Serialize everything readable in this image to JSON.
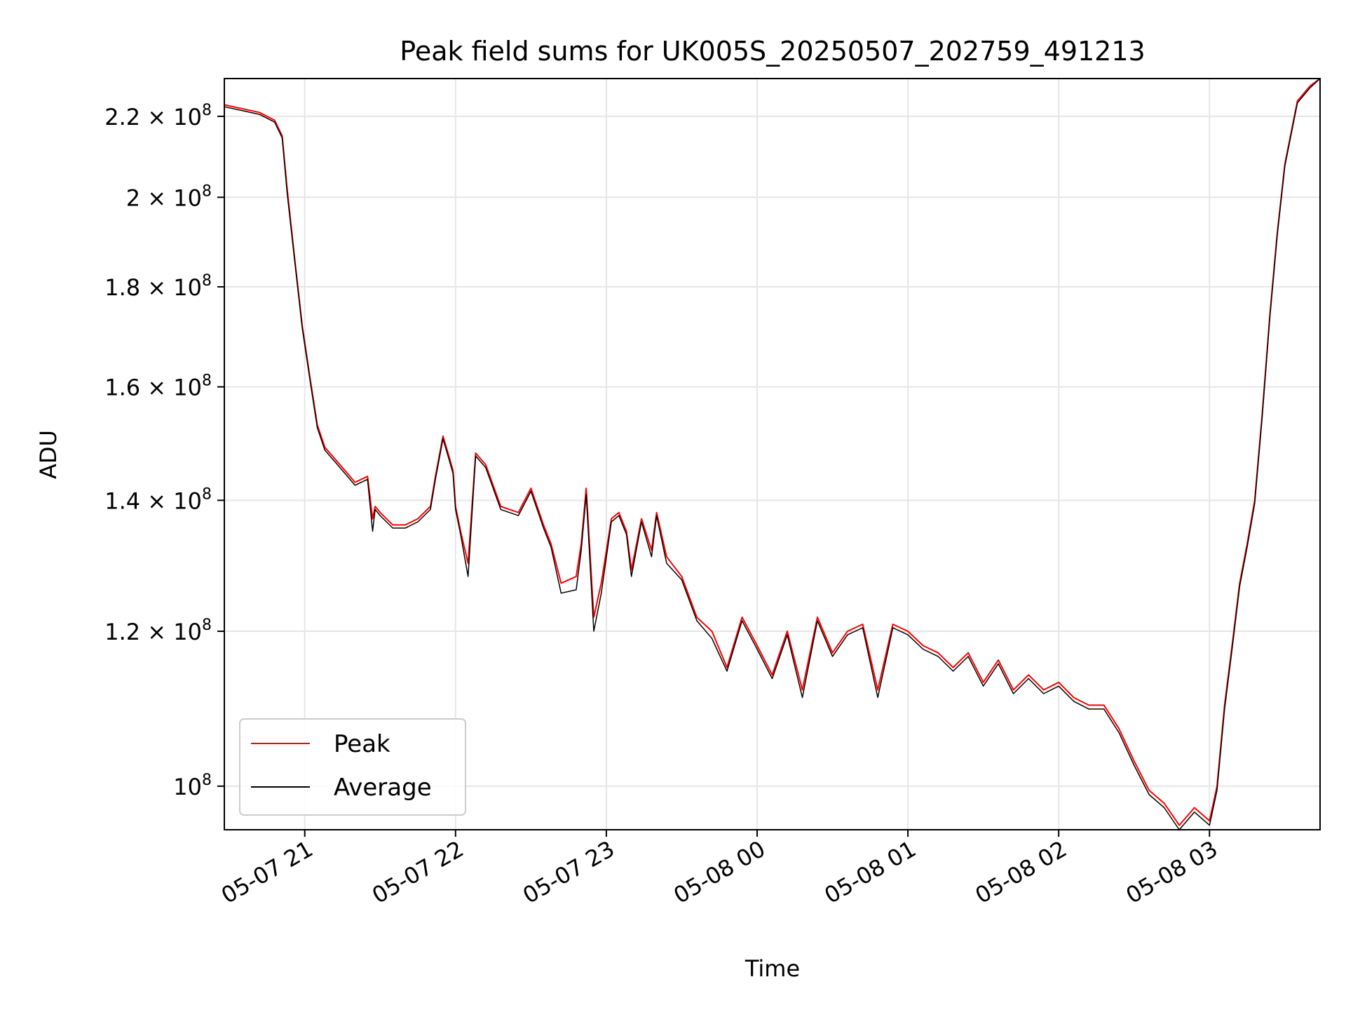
{
  "chart_data": {
    "type": "line",
    "title": "Peak field sums for UK005S_20250507_202759_491213",
    "xlabel": "Time",
    "ylabel": "ADU",
    "yscale": "log",
    "grid": true,
    "legend_position": "lower-left",
    "xlim": [
      "2025-05-07 20:28",
      "2025-05-08 03:44"
    ],
    "ylim": [
      95000000.0,
      230000000.0
    ],
    "x_ticks": [
      {
        "label": "05-07 21",
        "value": "2025-05-07 21:00"
      },
      {
        "label": "05-07 22",
        "value": "2025-05-07 22:00"
      },
      {
        "label": "05-07 23",
        "value": "2025-05-07 23:00"
      },
      {
        "label": "05-08 00",
        "value": "2025-05-08 00:00"
      },
      {
        "label": "05-08 01",
        "value": "2025-05-08 01:00"
      },
      {
        "label": "05-08 02",
        "value": "2025-05-08 02:00"
      },
      {
        "label": "05-08 03",
        "value": "2025-05-08 03:00"
      }
    ],
    "y_ticks": [
      {
        "mant": "10",
        "exp": "8",
        "value": 100000000.0
      },
      {
        "mant": "1.2 × 10",
        "exp": "8",
        "value": 120000000.0
      },
      {
        "mant": "1.4 × 10",
        "exp": "8",
        "value": 140000000.0
      },
      {
        "mant": "1.6 × 10",
        "exp": "8",
        "value": 160000000.0
      },
      {
        "mant": "1.8 × 10",
        "exp": "8",
        "value": 180000000.0
      },
      {
        "mant": "2 × 10",
        "exp": "8",
        "value": 200000000.0
      },
      {
        "mant": "2.2 × 10",
        "exp": "8",
        "value": 220000000.0
      }
    ],
    "series": [
      {
        "name": "Peak",
        "color": "#ff0000",
        "x": [
          "2025-05-07 20:28",
          "2025-05-07 20:35",
          "2025-05-07 20:42",
          "2025-05-07 20:48",
          "2025-05-07 20:51",
          "2025-05-07 20:53",
          "2025-05-07 20:56",
          "2025-05-07 20:59",
          "2025-05-07 21:02",
          "2025-05-07 21:05",
          "2025-05-07 21:08",
          "2025-05-07 21:12",
          "2025-05-07 21:16",
          "2025-05-07 21:20",
          "2025-05-07 21:25",
          "2025-05-07 21:27",
          "2025-05-07 21:28",
          "2025-05-07 21:30",
          "2025-05-07 21:35",
          "2025-05-07 21:40",
          "2025-05-07 21:45",
          "2025-05-07 21:50",
          "2025-05-07 21:52",
          "2025-05-07 21:55",
          "2025-05-07 21:57",
          "2025-05-07 21:59",
          "2025-05-07 22:00",
          "2025-05-07 22:02",
          "2025-05-07 22:05",
          "2025-05-07 22:08",
          "2025-05-07 22:12",
          "2025-05-07 22:18",
          "2025-05-07 22:25",
          "2025-05-07 22:30",
          "2025-05-07 22:35",
          "2025-05-07 22:38",
          "2025-05-07 22:42",
          "2025-05-07 22:48",
          "2025-05-07 22:50",
          "2025-05-07 22:52",
          "2025-05-07 22:55",
          "2025-05-07 22:58",
          "2025-05-07 23:02",
          "2025-05-07 23:05",
          "2025-05-07 23:08",
          "2025-05-07 23:10",
          "2025-05-07 23:14",
          "2025-05-07 23:18",
          "2025-05-07 23:20",
          "2025-05-07 23:24",
          "2025-05-07 23:30",
          "2025-05-07 23:36",
          "2025-05-07 23:42",
          "2025-05-07 23:48",
          "2025-05-07 23:54",
          "2025-05-08 00:00",
          "2025-05-08 00:06",
          "2025-05-08 00:12",
          "2025-05-08 00:18",
          "2025-05-08 00:24",
          "2025-05-08 00:30",
          "2025-05-08 00:36",
          "2025-05-08 00:42",
          "2025-05-08 00:48",
          "2025-05-08 00:54",
          "2025-05-08 01:00",
          "2025-05-08 01:06",
          "2025-05-08 01:12",
          "2025-05-08 01:18",
          "2025-05-08 01:24",
          "2025-05-08 01:30",
          "2025-05-08 01:36",
          "2025-05-08 01:42",
          "2025-05-08 01:48",
          "2025-05-08 01:54",
          "2025-05-08 02:00",
          "2025-05-08 02:06",
          "2025-05-08 02:12",
          "2025-05-08 02:18",
          "2025-05-08 02:24",
          "2025-05-08 02:30",
          "2025-05-08 02:36",
          "2025-05-08 02:42",
          "2025-05-08 02:48",
          "2025-05-08 02:54",
          "2025-05-08 03:00",
          "2025-05-08 03:03",
          "2025-05-08 03:06",
          "2025-05-08 03:09",
          "2025-05-08 03:12",
          "2025-05-08 03:15",
          "2025-05-08 03:18",
          "2025-05-08 03:21",
          "2025-05-08 03:24",
          "2025-05-08 03:27",
          "2025-05-08 03:30",
          "2025-05-08 03:35",
          "2025-05-08 03:40",
          "2025-05-08 03:44"
        ],
        "values": [
          223000000.0,
          222000000.0,
          221000000.0,
          219000000.0,
          215000000.0,
          202000000.0,
          186000000.0,
          172000000.0,
          162000000.0,
          153000000.0,
          149000000.0,
          147000000.0,
          145000000.0,
          143000000.0,
          144000000.0,
          137000000.0,
          139000000.0,
          138000000.0,
          136000000.0,
          136000000.0,
          137000000.0,
          139000000.0,
          144000000.0,
          151000000.0,
          148000000.0,
          145000000.0,
          139000000.0,
          135000000.0,
          130000000.0,
          148000000.0,
          146000000.0,
          139000000.0,
          138000000.0,
          142000000.0,
          136000000.0,
          133000000.0,
          127000000.0,
          128000000.0,
          133000000.0,
          142000000.0,
          122000000.0,
          127000000.0,
          137000000.0,
          138000000.0,
          135000000.0,
          129000000.0,
          137000000.0,
          132000000.0,
          138000000.0,
          131000000.0,
          128000000.0,
          122000000.0,
          120000000.0,
          115000000.0,
          122000000.0,
          118000000.0,
          114000000.0,
          120000000.0,
          112000000.0,
          122000000.0,
          117000000.0,
          120000000.0,
          121000000.0,
          112000000.0,
          121000000.0,
          120000000.0,
          118000000.0,
          117000000.0,
          115000000.0,
          117000000.0,
          113000000.0,
          116000000.0,
          112000000.0,
          114000000.0,
          112000000.0,
          113000000.0,
          111000000.0,
          110000000.0,
          110000000.0,
          107000000.0,
          103000000.0,
          99500000.0,
          98000000.0,
          95500000.0,
          97500000.0,
          96000000.0,
          100000000.0,
          110000000.0,
          118000000.0,
          127000000.0,
          133000000.0,
          140000000.0,
          155000000.0,
          174000000.0,
          192000000.0,
          208000000.0,
          224000000.0,
          228000000.0,
          230000000.0
        ]
      },
      {
        "name": "Average",
        "color": "#000000",
        "x": [
          "2025-05-07 20:28",
          "2025-05-07 20:35",
          "2025-05-07 20:42",
          "2025-05-07 20:48",
          "2025-05-07 20:51",
          "2025-05-07 20:53",
          "2025-05-07 20:56",
          "2025-05-07 20:59",
          "2025-05-07 21:02",
          "2025-05-07 21:05",
          "2025-05-07 21:08",
          "2025-05-07 21:12",
          "2025-05-07 21:16",
          "2025-05-07 21:20",
          "2025-05-07 21:25",
          "2025-05-07 21:27",
          "2025-05-07 21:28",
          "2025-05-07 21:30",
          "2025-05-07 21:35",
          "2025-05-07 21:40",
          "2025-05-07 21:45",
          "2025-05-07 21:50",
          "2025-05-07 21:52",
          "2025-05-07 21:55",
          "2025-05-07 21:57",
          "2025-05-07 21:59",
          "2025-05-07 22:00",
          "2025-05-07 22:02",
          "2025-05-07 22:05",
          "2025-05-07 22:08",
          "2025-05-07 22:12",
          "2025-05-07 22:18",
          "2025-05-07 22:25",
          "2025-05-07 22:30",
          "2025-05-07 22:35",
          "2025-05-07 22:38",
          "2025-05-07 22:42",
          "2025-05-07 22:48",
          "2025-05-07 22:50",
          "2025-05-07 22:52",
          "2025-05-07 22:55",
          "2025-05-07 22:58",
          "2025-05-07 23:02",
          "2025-05-07 23:05",
          "2025-05-07 23:08",
          "2025-05-07 23:10",
          "2025-05-07 23:14",
          "2025-05-07 23:18",
          "2025-05-07 23:20",
          "2025-05-07 23:24",
          "2025-05-07 23:30",
          "2025-05-07 23:36",
          "2025-05-07 23:42",
          "2025-05-07 23:48",
          "2025-05-07 23:54",
          "2025-05-08 00:00",
          "2025-05-08 00:06",
          "2025-05-08 00:12",
          "2025-05-08 00:18",
          "2025-05-08 00:24",
          "2025-05-08 00:30",
          "2025-05-08 00:36",
          "2025-05-08 00:42",
          "2025-05-08 00:48",
          "2025-05-08 00:54",
          "2025-05-08 01:00",
          "2025-05-08 01:06",
          "2025-05-08 01:12",
          "2025-05-08 01:18",
          "2025-05-08 01:24",
          "2025-05-08 01:30",
          "2025-05-08 01:36",
          "2025-05-08 01:42",
          "2025-05-08 01:48",
          "2025-05-08 01:54",
          "2025-05-08 02:00",
          "2025-05-08 02:06",
          "2025-05-08 02:12",
          "2025-05-08 02:18",
          "2025-05-08 02:24",
          "2025-05-08 02:30",
          "2025-05-08 02:36",
          "2025-05-08 02:42",
          "2025-05-08 02:48",
          "2025-05-08 02:54",
          "2025-05-08 03:00",
          "2025-05-08 03:03",
          "2025-05-08 03:06",
          "2025-05-08 03:09",
          "2025-05-08 03:12",
          "2025-05-08 03:15",
          "2025-05-08 03:18",
          "2025-05-08 03:21",
          "2025-05-08 03:24",
          "2025-05-08 03:27",
          "2025-05-08 03:30",
          "2025-05-08 03:35",
          "2025-05-08 03:40",
          "2025-05-08 03:44"
        ],
        "values": [
          222500000.0,
          221500000.0,
          220500000.0,
          218500000.0,
          214500000.0,
          201000000.0,
          185500000.0,
          171500000.0,
          161500000.0,
          152500000.0,
          148500000.0,
          146500000.0,
          144500000.0,
          142500000.0,
          143500000.0,
          135000000.0,
          138500000.0,
          137500000.0,
          135500000.0,
          135500000.0,
          136500000.0,
          138500000.0,
          143500000.0,
          150500000.0,
          147500000.0,
          144500000.0,
          138500000.0,
          134500000.0,
          128000000.0,
          147500000.0,
          145500000.0,
          138500000.0,
          137500000.0,
          141500000.0,
          135500000.0,
          132500000.0,
          125500000.0,
          126000000.0,
          132000000.0,
          141000000.0,
          120000000.0,
          125500000.0,
          136500000.0,
          137500000.0,
          134500000.0,
          128000000.0,
          136500000.0,
          131000000.0,
          137500000.0,
          130000000.0,
          127500000.0,
          121500000.0,
          119000000.0,
          114500000.0,
          121500000.0,
          117500000.0,
          113500000.0,
          119500000.0,
          111000000.0,
          121500000.0,
          116500000.0,
          119500000.0,
          120500000.0,
          111000000.0,
          120500000.0,
          119500000.0,
          117500000.0,
          116500000.0,
          114500000.0,
          116500000.0,
          112500000.0,
          115500000.0,
          111500000.0,
          113500000.0,
          111500000.0,
          112500000.0,
          110500000.0,
          109500000.0,
          109500000.0,
          106500000.0,
          102500000.0,
          99000000.0,
          97500000.0,
          95000000.0,
          97000000.0,
          95500000.0,
          99500000.0,
          109500000.0,
          117500000.0,
          126500000.0,
          132500000.0,
          139500000.0,
          154500000.0,
          173500000.0,
          191500000.0,
          207500000.0,
          223500000.0,
          227500000.0,
          230000000.0
        ]
      }
    ]
  }
}
